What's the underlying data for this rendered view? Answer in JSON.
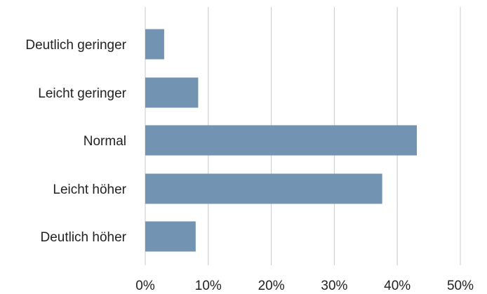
{
  "chart_data": {
    "type": "bar",
    "orientation": "horizontal",
    "categories": [
      "Deutlich geringer",
      "Leicht geringer",
      "Normal",
      "Leicht höher",
      "Deutlich höher"
    ],
    "values": [
      3,
      8.4,
      43.1,
      37.6,
      8
    ],
    "unit": "%",
    "xlim": [
      0,
      50
    ],
    "xticks": [
      "0%",
      "10%",
      "20%",
      "30%",
      "40%",
      "50%"
    ],
    "bar_color": "#7393b3",
    "grid": "vertical",
    "title": "",
    "xlabel": "",
    "ylabel": ""
  }
}
